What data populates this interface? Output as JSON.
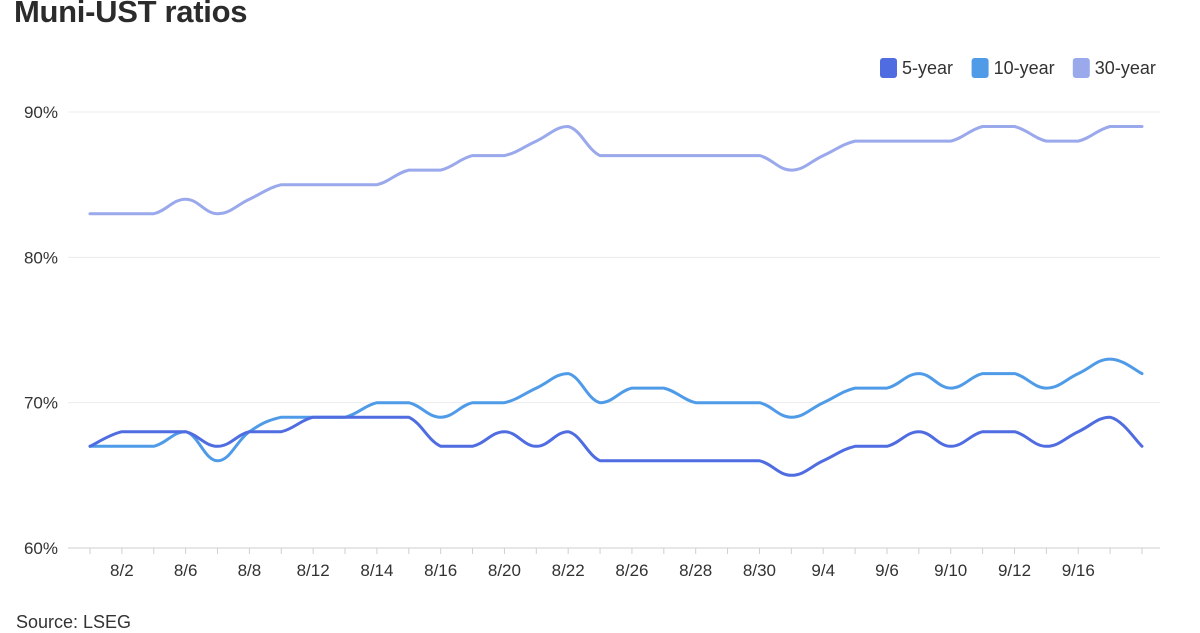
{
  "title": "Muni-UST ratios",
  "source": "Source: LSEG",
  "chart_data": {
    "type": "line",
    "title": "Muni-UST ratios",
    "xlabel": "",
    "ylabel": "",
    "ylim": [
      60,
      90
    ],
    "yticks": [
      60,
      70,
      80,
      90
    ],
    "ytick_labels": [
      "60%",
      "70%",
      "80%",
      "90%"
    ],
    "grid": true,
    "legend_position": "top-right",
    "x": [
      "8/1",
      "8/2",
      "8/5",
      "8/6",
      "8/7",
      "8/8",
      "8/9",
      "8/12",
      "8/13",
      "8/14",
      "8/15",
      "8/16",
      "8/19",
      "8/20",
      "8/21",
      "8/22",
      "8/23",
      "8/26",
      "8/27",
      "8/28",
      "8/29",
      "8/30",
      "9/3",
      "9/4",
      "9/5",
      "9/6",
      "9/9",
      "9/10",
      "9/11",
      "9/12",
      "9/13",
      "9/16",
      "9/17",
      "9/18"
    ],
    "tick_labels": [
      "8/2",
      "8/6",
      "8/8",
      "8/12",
      "8/14",
      "8/16",
      "8/20",
      "8/22",
      "8/26",
      "8/28",
      "8/30",
      "9/4",
      "9/6",
      "9/10",
      "9/12",
      "9/16"
    ],
    "series": [
      {
        "name": "5-year",
        "color": "#4f6ce0",
        "values": [
          67,
          68,
          68,
          68,
          67,
          68,
          68,
          69,
          69,
          69,
          69,
          67,
          67,
          68,
          67,
          68,
          66,
          66,
          66,
          66,
          66,
          66,
          65,
          66,
          67,
          67,
          68,
          67,
          68,
          68,
          67,
          68,
          69,
          67
        ]
      },
      {
        "name": "10-year",
        "color": "#4f9be8",
        "values": [
          67,
          67,
          67,
          68,
          66,
          68,
          69,
          69,
          69,
          70,
          70,
          69,
          70,
          70,
          71,
          72,
          70,
          71,
          71,
          70,
          70,
          70,
          69,
          70,
          71,
          71,
          72,
          71,
          72,
          72,
          71,
          72,
          73,
          72
        ]
      },
      {
        "name": "30-year",
        "color": "#9aa8ec",
        "values": [
          83,
          83,
          83,
          84,
          83,
          84,
          85,
          85,
          85,
          85,
          86,
          86,
          87,
          87,
          88,
          89,
          87,
          87,
          87,
          87,
          87,
          87,
          86,
          87,
          88,
          88,
          88,
          88,
          89,
          89,
          88,
          88,
          89,
          89
        ]
      }
    ]
  }
}
